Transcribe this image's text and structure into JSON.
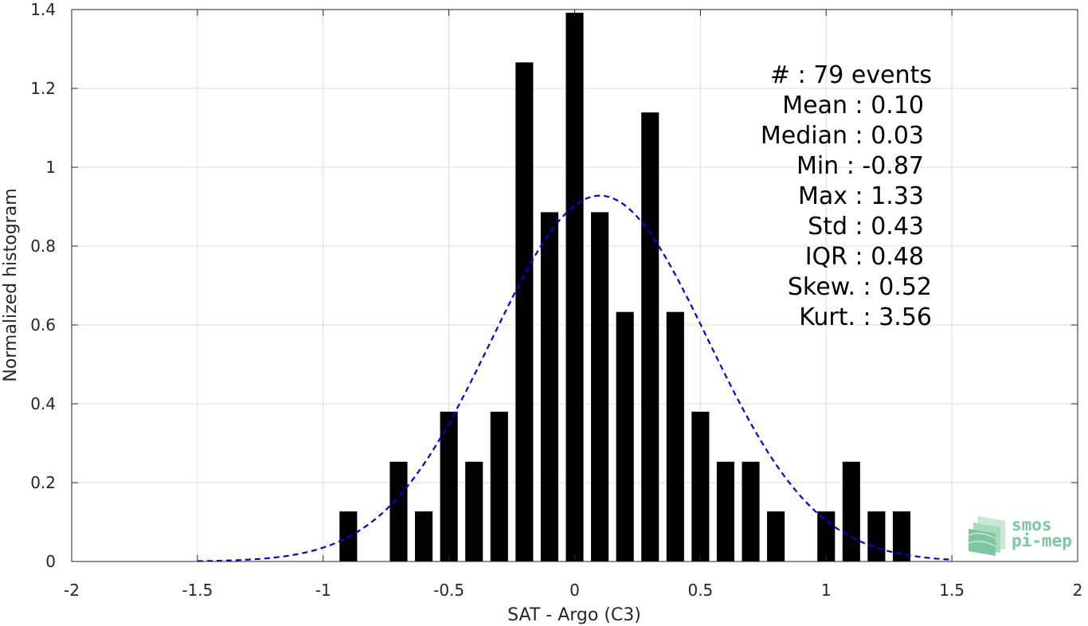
{
  "chart_data": {
    "type": "bar",
    "xlabel": "SAT - Argo (C3)",
    "ylabel": "Normalized histogram",
    "xlim": [
      -2,
      2
    ],
    "ylim": [
      0,
      1.4
    ],
    "xticks": [
      -2,
      -1.5,
      -1,
      -0.5,
      0,
      0.5,
      1,
      1.5,
      2
    ],
    "xtick_labels": [
      "-2",
      "-1.5",
      "-1",
      "-0.5",
      "0",
      "0.5",
      "1",
      "1.5",
      "2"
    ],
    "yticks": [
      0,
      0.2,
      0.4,
      0.6,
      0.8,
      1,
      1.2,
      1.4
    ],
    "ytick_labels": [
      "0",
      "0.2",
      "0.4",
      "0.6",
      "0.8",
      "1",
      "1.2",
      "1.4"
    ],
    "grid": true,
    "bar_color": "#000000",
    "fit_color": "#0000e0",
    "bars": [
      {
        "x": -0.9,
        "y": 0.127
      },
      {
        "x": -0.7,
        "y": 0.253
      },
      {
        "x": -0.6,
        "y": 0.127
      },
      {
        "x": -0.5,
        "y": 0.38
      },
      {
        "x": -0.4,
        "y": 0.253
      },
      {
        "x": -0.3,
        "y": 0.38
      },
      {
        "x": -0.2,
        "y": 1.266
      },
      {
        "x": -0.1,
        "y": 0.886
      },
      {
        "x": 0.0,
        "y": 1.392
      },
      {
        "x": 0.1,
        "y": 0.886
      },
      {
        "x": 0.2,
        "y": 0.633
      },
      {
        "x": 0.3,
        "y": 1.139
      },
      {
        "x": 0.4,
        "y": 0.633
      },
      {
        "x": 0.5,
        "y": 0.38
      },
      {
        "x": 0.6,
        "y": 0.253
      },
      {
        "x": 0.7,
        "y": 0.253
      },
      {
        "x": 0.8,
        "y": 0.127
      },
      {
        "x": 1.0,
        "y": 0.127
      },
      {
        "x": 1.1,
        "y": 0.253
      },
      {
        "x": 1.2,
        "y": 0.127
      },
      {
        "x": 1.3,
        "y": 0.127
      }
    ],
    "bar_width": 0.07,
    "fit_curve": {
      "style": "dashed",
      "mean": 0.1,
      "std": 0.43,
      "x_range": [
        -1.5,
        1.5
      ]
    },
    "stats": [
      "#  : 79 events",
      "Mean : 0.10",
      "Median : 0.03",
      "Min : -0.87",
      "Max : 1.33",
      "Std : 0.43",
      "IQR : 0.48",
      "Skew. : 0.52",
      "Kurt. : 3.56"
    ]
  },
  "logo": {
    "line1": "smos",
    "line2": "pi-mep",
    "color": "#7dc6a0"
  }
}
